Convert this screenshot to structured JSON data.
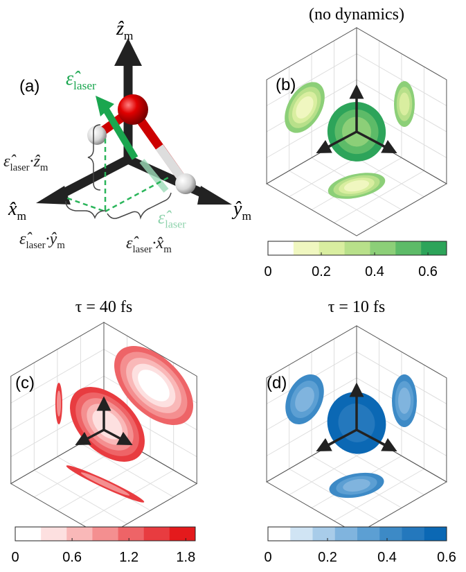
{
  "panel_a": {
    "label": "(a)",
    "z_axis": {
      "symbol": "ẑ",
      "sub": "m"
    },
    "x_axis": {
      "symbol": "x̂",
      "sub": "m"
    },
    "y_axis": {
      "symbol": "ŷ",
      "sub": "m"
    },
    "laser": {
      "symbol": "ε̂",
      "sub": "laser"
    },
    "laser_projection": {
      "symbol": "ε̂",
      "sub": "laser"
    },
    "proj_z": {
      "symbol": "ε̂",
      "sub": "laser",
      "dot": "·ẑ",
      "sub2": "m"
    },
    "proj_y": {
      "symbol": "ε̂",
      "sub": "laser",
      "dot": "·ŷ",
      "sub2": "m"
    },
    "proj_x": {
      "symbol": "ε̂",
      "sub": "laser",
      "dot": "·x̂",
      "sub2": "m"
    }
  },
  "panels": [
    {
      "label": "(b)",
      "title": "(no dynamics)",
      "colorbar": {
        "lim": [
          0,
          0.67
        ],
        "ticks": [
          0,
          0.2,
          0.4,
          0.6
        ],
        "colors": [
          "#ffffff",
          "#f0f7c0",
          "#d9eea0",
          "#b8e08a",
          "#8ccf78",
          "#5dbb68",
          "#2da45a"
        ]
      }
    },
    {
      "label": "(c)",
      "title": "τ = 40 fs",
      "colorbar": {
        "lim": [
          0,
          1.9
        ],
        "ticks": [
          0,
          0.6,
          1.2,
          1.8
        ],
        "colors": [
          "#ffffff",
          "#fde0e0",
          "#f9b8b8",
          "#f48f90",
          "#ee6467",
          "#e83c40",
          "#e41a1c"
        ]
      }
    },
    {
      "label": "(d)",
      "title": "τ = 10 fs",
      "colorbar": {
        "lim": [
          0,
          0.6
        ],
        "ticks": [
          0,
          0.2,
          0.4,
          0.6
        ],
        "colors": [
          "#ffffff",
          "#d0e4f4",
          "#a8cce9",
          "#80b4de",
          "#5c9fd3",
          "#3d8ac6",
          "#2478bd",
          "#0b68b4"
        ]
      }
    }
  ]
}
